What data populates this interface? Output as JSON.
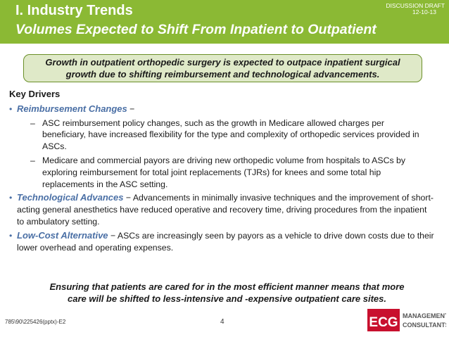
{
  "header": {
    "section_title": "I.  Industry Trends",
    "slide_title": "Volumes Expected to Shift From Inpatient to Outpatient",
    "draft_label": "DISCUSSION DRAFT",
    "draft_date": "12-10-13"
  },
  "callout": {
    "line1": "Growth in outpatient orthopedic surgery is expected to outpace inpatient surgical",
    "line2": "growth due to shifting reimbursement and technological advancements."
  },
  "key_drivers_title": "Key Drivers",
  "bullets": [
    {
      "heading": "Reimbursement Changes",
      "separator": " −",
      "text": "",
      "subs": [
        "ASC reimbursement policy changes, such as the growth in Medicare allowed charges per beneficiary, have increased flexibility for the type and complexity of orthopedic services provided in ASCs.",
        "Medicare and commercial payors are driving new orthopedic volume from hospitals to ASCs by exploring reimbursement for total joint replacements (TJRs) for knees and some total hip replacements in the ASC setting."
      ]
    },
    {
      "heading": "Technological Advances",
      "separator": " − ",
      "text": "Advancements in minimally invasive techniques and the improvement of short-acting general anesthetics have reduced operative and recovery time, driving procedures from the inpatient to ambulatory setting."
    },
    {
      "heading": "Low-Cost Alternative",
      "separator": " − ",
      "text": "ASCs are increasingly seen by payors as a vehicle to drive down costs due to their lower overhead and operating expenses."
    }
  ],
  "conclusion": {
    "line1": "Ensuring that patients are cared for in the most efficient manner means that more",
    "line2": "care will be shifted to less-intensive and -expensive outpatient care sites."
  },
  "footer": {
    "doc_id": "785\\90\\225426(pptx)-E2",
    "page_number": "4"
  },
  "logo": {
    "mark": "ECG",
    "word1": "MANAGEMENT",
    "word2": "CONSULTANTS",
    "color": "#c8102e"
  },
  "colors": {
    "header_green": "#8bb934",
    "callout_fill": "#dfe9c8",
    "bullet_blue": "#4a6fa5"
  }
}
